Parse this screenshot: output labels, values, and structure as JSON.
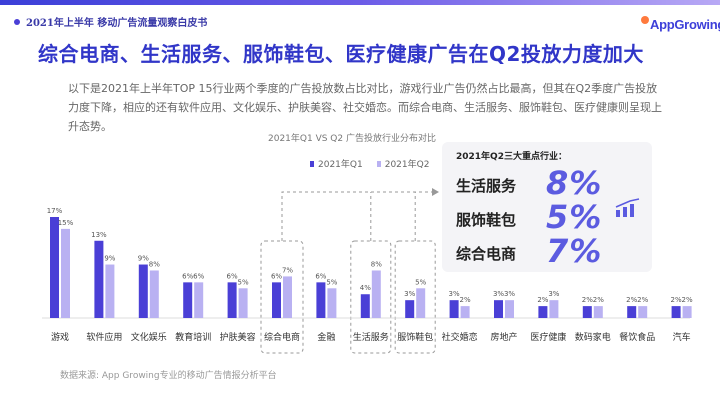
{
  "header": {
    "report_tag": "2021年上半年 移动广告流量观察白皮书",
    "logo_text": "AppGrowing"
  },
  "page_title": "综合电商、生活服务、服饰鞋包、医疗健康广告在Q2投放力度加大",
  "description": "以下是2021年上半年TOP 15行业两个季度的广告投放数占比对比，游戏行业广告仍然占比最高，但其在Q2季度广告投放力度下降，相应的还有软件应用、文化娱乐、护肤美容、社交婚恋。而综合电商、生活服务、服饰鞋包、医疗健康则呈现上升态势。",
  "callout": {
    "title": "2021年Q2三大重点行业：",
    "rows": [
      {
        "label": "生活服务",
        "value": "8%"
      },
      {
        "label": "服饰鞋包",
        "value": "5%"
      },
      {
        "label": "综合电商",
        "value": "7%"
      }
    ],
    "icon": "growth-chart-icon"
  },
  "source": "数据来源: App Growing专业的移动广告情报分析平台",
  "colors": {
    "q1": "#4a3fd6",
    "q2": "#b9b1f2",
    "title": "#3136c8",
    "highlight_border": "#999999"
  },
  "chart_data": {
    "type": "bar",
    "title": "2021年Q1 VS Q2 广告投放行业分布对比",
    "categories": [
      "游戏",
      "软件应用",
      "文化娱乐",
      "教育培训",
      "护肤美容",
      "综合电商",
      "金融",
      "生活服务",
      "服饰鞋包",
      "社交婚恋",
      "房地产",
      "医疗健康",
      "数码家电",
      "餐饮食品",
      "汽车"
    ],
    "series": [
      {
        "name": "2021年Q1",
        "values": [
          17,
          13,
          9,
          6,
          6,
          6,
          6,
          4,
          3,
          3,
          3,
          2,
          2,
          2,
          2
        ],
        "labels": [
          "17%",
          "13%",
          "9%",
          "6%",
          "6%",
          "6%",
          "6%",
          "4%",
          "3%",
          "3%",
          "3%",
          "2%",
          "2%",
          "2%",
          "2%"
        ]
      },
      {
        "name": "2021年Q2",
        "values": [
          15,
          9,
          8,
          6,
          5,
          7,
          5,
          8,
          5,
          2,
          3,
          3,
          2,
          2,
          2
        ],
        "labels": [
          "15%",
          "9%",
          "8%",
          "6%",
          "5%",
          "7%",
          "5%",
          "8%",
          "5%",
          "2%",
          "3%",
          "3%",
          "2%",
          "2%",
          "2%"
        ]
      }
    ],
    "highlighted": [
      "综合电商",
      "生活服务",
      "服饰鞋包"
    ],
    "ylim": [
      0,
      18
    ],
    "legend_position": "top"
  }
}
